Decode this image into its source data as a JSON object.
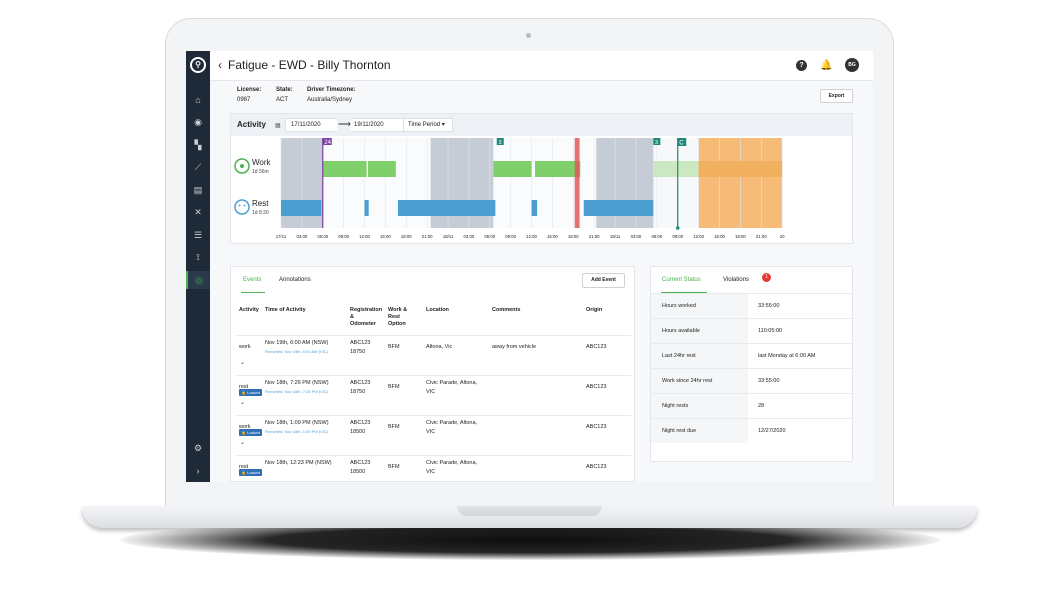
{
  "header": {
    "title": "Fatigue - EWD - Billy Thornton",
    "avatar_initials": "BG",
    "export_label": "Export"
  },
  "driver": {
    "license_label": "License:",
    "license_value": "0987",
    "state_label": "State:",
    "state_value": "ACT",
    "timezone_label": "Driver Timezone:",
    "timezone_value": "Australia/Sydney"
  },
  "activity": {
    "title": "Activity",
    "date_from": "17/11/2020",
    "date_to": "19/11/2020",
    "period_label": "Time Period",
    "work_label": "Work",
    "work_duration": "1d 56m",
    "rest_label": "Rest",
    "rest_duration": "1d 8:20",
    "markers": [
      "24",
      "3",
      "3",
      "C"
    ],
    "ticks": [
      "17/11",
      "03:00",
      "06:00",
      "09:00",
      "12:00",
      "15:00",
      "18:00",
      "21:00",
      "18/11",
      "03:00",
      "06:00",
      "09:00",
      "12:00",
      "15:00",
      "18:00",
      "21:00",
      "19/11",
      "03:00",
      "06:00",
      "09:00",
      "12:00",
      "15:00",
      "18:00",
      "21:00",
      "20"
    ],
    "colors": {
      "work": "#7fcf6a",
      "rest": "#4a9fd0",
      "shade": "#b4bcca",
      "violation": "#e2585a",
      "forecast": "#f5a64c",
      "marker_purple": "#7b3fa0",
      "marker_teal": "#1e8a7a"
    }
  },
  "events": {
    "tabs": [
      "Events",
      "Annotations"
    ],
    "add_label": "Add Event",
    "columns": [
      "Activity",
      "Time of Activity",
      "Registration & Odometer",
      "Work & Rest Option",
      "Location",
      "Comments",
      "Origin"
    ],
    "rows": [
      {
        "activity": "work",
        "time": "Nov 19th, 6:00 AM (NSW)",
        "recorded": "Recorded: Nov 19th, 6:00 AM (VIC)",
        "locked": "",
        "rego": "ABC123",
        "odometer": "18750",
        "option": "BFM",
        "location": [
          "Altona, Vic"
        ],
        "comments": "away from vehicle",
        "origin": "ABC123"
      },
      {
        "activity": "rest",
        "time": "Nov 18th, 7:26 PM (NSW)",
        "recorded": "Recorded: Nov 18th, 7:26 PM (VIC)",
        "locked": "Locked",
        "rego": "ABC123",
        "odometer": "18750",
        "option": "BFM",
        "location": [
          "Civic Parade, Altona,",
          "VIC"
        ],
        "comments": "",
        "origin": "ABC123"
      },
      {
        "activity": "work",
        "time": "Nov 18th, 1:09 PM (NSW)",
        "recorded": "Recorded: Nov 18th, 1:09 PM (VIC)",
        "locked": "Locked",
        "rego": "ABC123",
        "odometer": "18500",
        "option": "BFM",
        "location": [
          "Civic Parade, Altona,",
          "VIC"
        ],
        "comments": "",
        "origin": "ABC123"
      },
      {
        "activity": "rest",
        "time": "Nov 18th, 12:23 PM (NSW)",
        "recorded": "",
        "locked": "Locked",
        "rego": "ABC123",
        "odometer": "18500",
        "option": "BFM",
        "location": [
          "Civic Parade, Altona,",
          "VIC"
        ],
        "comments": "",
        "origin": "ABC123"
      }
    ]
  },
  "status": {
    "tabs": [
      "Current Status",
      "Violations"
    ],
    "violations_count": "1",
    "rows": [
      {
        "label": "Hours worked",
        "value": "33:55:00"
      },
      {
        "label": "Hours available",
        "value": "110:05:00"
      },
      {
        "label": "Last 24hr rest",
        "value": "last Monday at 6:00 AM"
      },
      {
        "label": "Work since 24hr rest",
        "value": "33:55:00"
      },
      {
        "label": "Night rests",
        "value": "28"
      },
      {
        "label": "Night rest due",
        "value": "12/27/2020"
      }
    ]
  }
}
